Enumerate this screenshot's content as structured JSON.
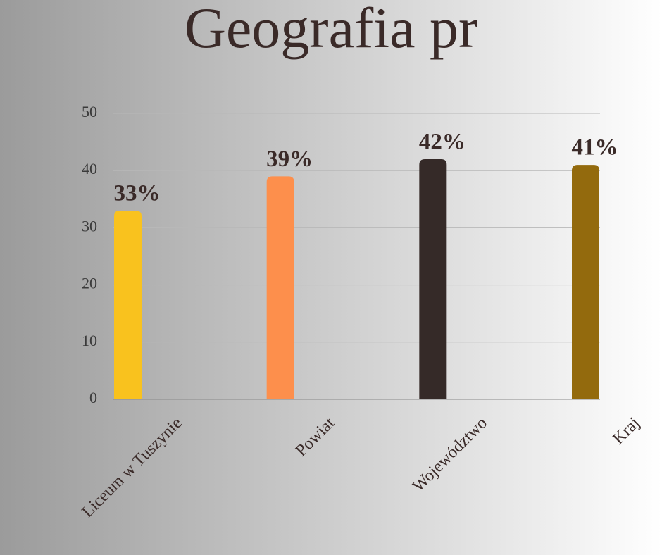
{
  "chart_data": {
    "type": "bar",
    "title": "Geografia pr",
    "categories": [
      "Liceum w Tuszynie",
      "Powiat",
      "Województwo",
      "Kraj"
    ],
    "values": [
      33,
      39,
      42,
      41
    ],
    "value_labels": [
      "33%",
      "39%",
      "42%",
      "41%"
    ],
    "colors": [
      "#f9c21e",
      "#fd8f4c",
      "#352a28",
      "#936a0d"
    ],
    "ylim": [
      0,
      50
    ],
    "yticks": [
      0,
      10,
      20,
      30,
      40,
      50
    ],
    "grid": true
  }
}
